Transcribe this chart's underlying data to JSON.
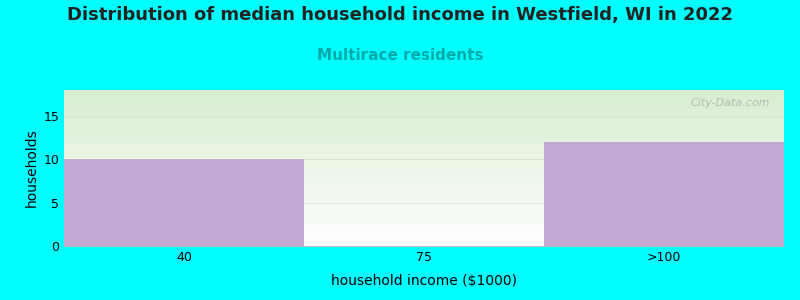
{
  "title": "Distribution of median household income in Westfield, WI in 2022",
  "subtitle": "Multirace residents",
  "xlabel": "household income ($1000)",
  "ylabel": "households",
  "categories": [
    "40",
    "75",
    ">100"
  ],
  "values": [
    10,
    0,
    12
  ],
  "ylim": [
    0,
    18
  ],
  "yticks": [
    0,
    5,
    10,
    15
  ],
  "bar_color": "#C4A8D4",
  "background_color": "#00FFFF",
  "plot_bg_top_left": "#D8EED0",
  "plot_bg_bottom_right": "#FFFFFF",
  "title_fontsize": 13,
  "subtitle_fontsize": 11,
  "subtitle_color": "#00AAAA",
  "title_color": "#222222",
  "axis_label_fontsize": 10,
  "tick_fontsize": 9,
  "watermark": "City-Data.com"
}
